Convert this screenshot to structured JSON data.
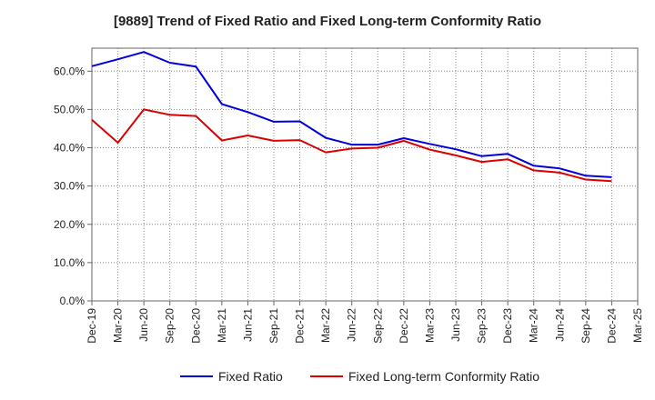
{
  "chart_data": {
    "type": "line",
    "title": "[9889]  Trend of Fixed Ratio and Fixed Long-term Conformity Ratio",
    "xlabel": "",
    "ylabel": "",
    "x": [
      "Dec-19",
      "Mar-20",
      "Jun-20",
      "Sep-20",
      "Dec-20",
      "Mar-21",
      "Jun-21",
      "Sep-21",
      "Dec-21",
      "Mar-22",
      "Jun-22",
      "Sep-22",
      "Dec-22",
      "Mar-23",
      "Jun-23",
      "Sep-23",
      "Dec-23",
      "Mar-24",
      "Jun-24",
      "Sep-24",
      "Dec-24",
      "Mar-25"
    ],
    "x_tick_labels": [
      "Dec-19",
      "Mar-20",
      "Jun-20",
      "Sep-20",
      "Dec-20",
      "Mar-21",
      "Jun-21",
      "Sep-21",
      "Dec-21",
      "Mar-22",
      "Jun-22",
      "Sep-22",
      "Dec-22",
      "Mar-23",
      "Jun-23",
      "Sep-23",
      "Dec-23",
      "Mar-24",
      "Jun-24",
      "Sep-24",
      "Dec-24",
      "Mar-25"
    ],
    "ylim": [
      0,
      66
    ],
    "y_ticks": [
      0,
      10,
      20,
      30,
      40,
      50,
      60
    ],
    "y_tick_labels": [
      "0.0%",
      "10.0%",
      "20.0%",
      "30.0%",
      "40.0%",
      "50.0%",
      "60.0%"
    ],
    "grid": true,
    "legend_position": "bottom",
    "series": [
      {
        "name": "Fixed Ratio",
        "color": "#0000dd",
        "values": [
          61.3,
          63.1,
          65.0,
          62.2,
          61.2,
          51.4,
          49.3,
          46.8,
          46.9,
          42.6,
          40.8,
          40.8,
          42.5,
          41.0,
          39.6,
          37.8,
          38.4,
          35.3,
          34.6,
          32.7,
          32.3,
          null
        ]
      },
      {
        "name": "Fixed Long-term Conformity Ratio",
        "color": "#dd0000",
        "values": [
          47.3,
          41.3,
          50.0,
          48.6,
          48.3,
          41.9,
          43.2,
          41.8,
          42.0,
          38.8,
          39.8,
          40.0,
          41.8,
          39.5,
          38.0,
          36.3,
          37.0,
          34.1,
          33.5,
          31.7,
          31.3,
          null
        ]
      }
    ]
  }
}
